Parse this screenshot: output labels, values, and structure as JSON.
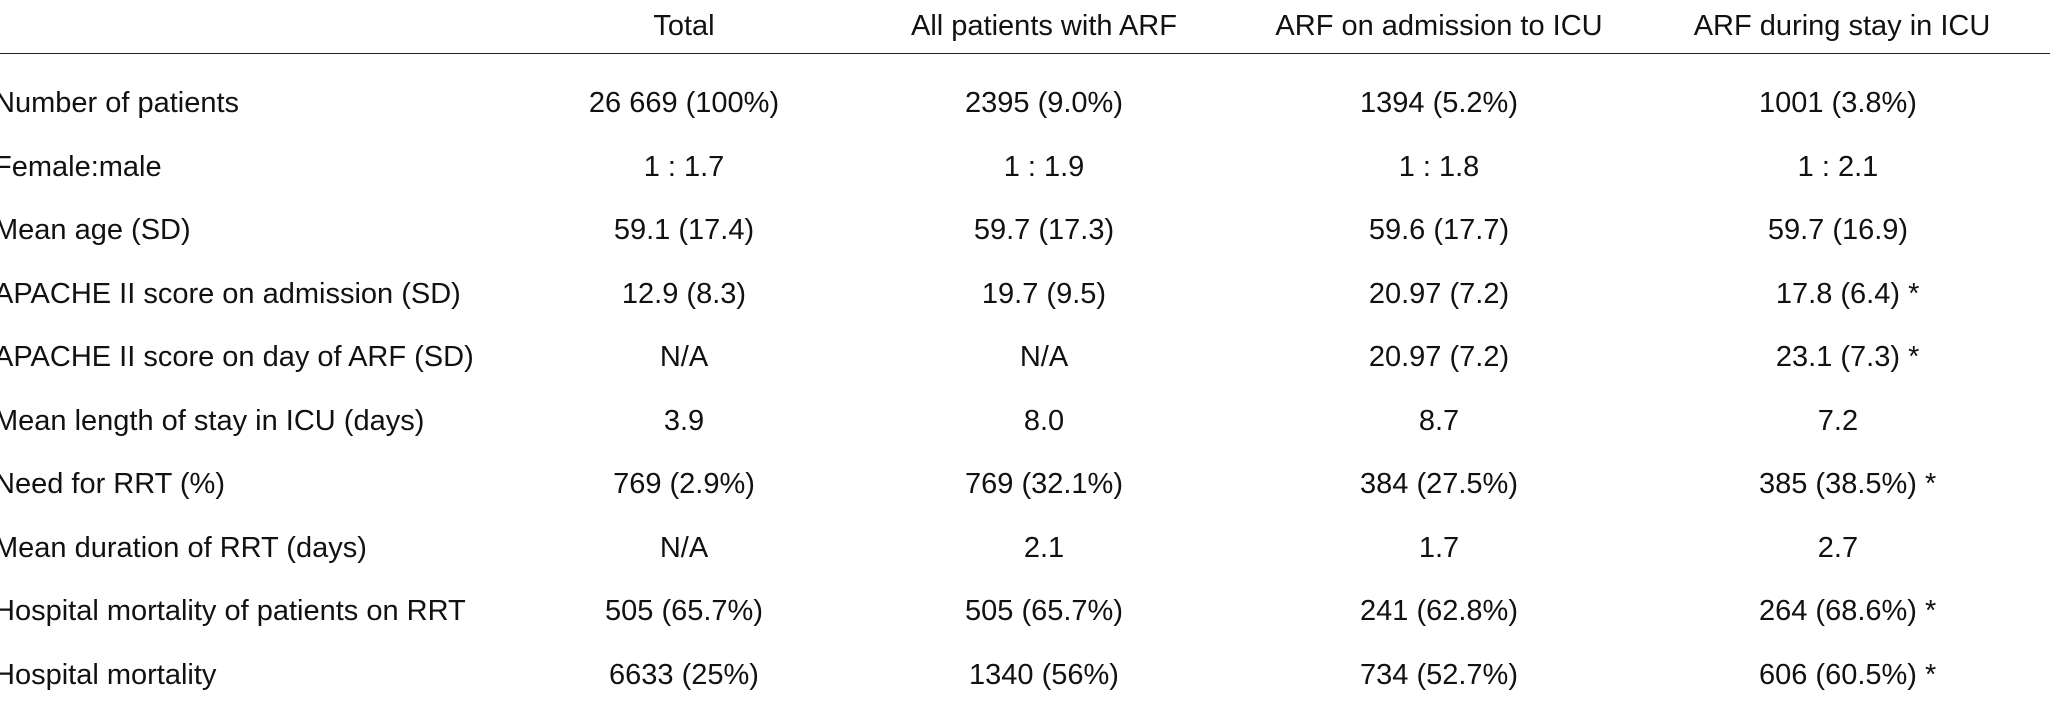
{
  "columns": [
    "",
    "Total",
    "All patients with ARF",
    "ARF on admission to ICU",
    "ARF during stay in ICU"
  ],
  "rows": [
    {
      "label": "Number of patients",
      "total": "26 669 (100%)",
      "all_arf": "2395 (9.0%)",
      "arf_admission": "1394 (5.2%)",
      "arf_stay": "1001 (3.8%)",
      "arf_stay_mark": ""
    },
    {
      "label": "Female:male",
      "total": "1 : 1.7",
      "all_arf": "1 : 1.9",
      "arf_admission": "1 : 1.8",
      "arf_stay": "1 : 2.1",
      "arf_stay_mark": ""
    },
    {
      "label": "Mean age (SD)",
      "total": "59.1 (17.4)",
      "all_arf": "59.7 (17.3)",
      "arf_admission": "59.6 (17.7)",
      "arf_stay": "59.7 (16.9)",
      "arf_stay_mark": ""
    },
    {
      "label": "APACHE II score on admission (SD)",
      "total": "12.9 (8.3)",
      "all_arf": "19.7 (9.5)",
      "arf_admission": "20.97 (7.2)",
      "arf_stay": "17.8 (6.4)",
      "arf_stay_mark": "*"
    },
    {
      "label": "APACHE II score on day of ARF (SD)",
      "total": "N/A",
      "all_arf": "N/A",
      "arf_admission": "20.97 (7.2)",
      "arf_stay": "23.1 (7.3)",
      "arf_stay_mark": "*"
    },
    {
      "label": "Mean length of stay in ICU (days)",
      "total": "3.9",
      "all_arf": "8.0",
      "arf_admission": "8.7",
      "arf_stay": "7.2",
      "arf_stay_mark": ""
    },
    {
      "label": "Need for RRT (%)",
      "total": "769 (2.9%)",
      "all_arf": "769 (32.1%)",
      "arf_admission": "384 (27.5%)",
      "arf_stay": "385 (38.5%)",
      "arf_stay_mark": "*"
    },
    {
      "label": "Mean duration of RRT (days)",
      "total": "N/A",
      "all_arf": "2.1",
      "arf_admission": "1.7",
      "arf_stay": "2.7",
      "arf_stay_mark": ""
    },
    {
      "label": "Hospital mortality of patients on RRT",
      "total": "505 (65.7%)",
      "all_arf": "505 (65.7%)",
      "arf_admission": "241 (62.8%)",
      "arf_stay": "264 (68.6%)",
      "arf_stay_mark": "*"
    },
    {
      "label": "Hospital mortality",
      "total": "6633 (25%)",
      "all_arf": "1340 (56%)",
      "arf_admission": "734 (52.7%)",
      "arf_stay": "606 (60.5%)",
      "arf_stay_mark": "*"
    }
  ]
}
